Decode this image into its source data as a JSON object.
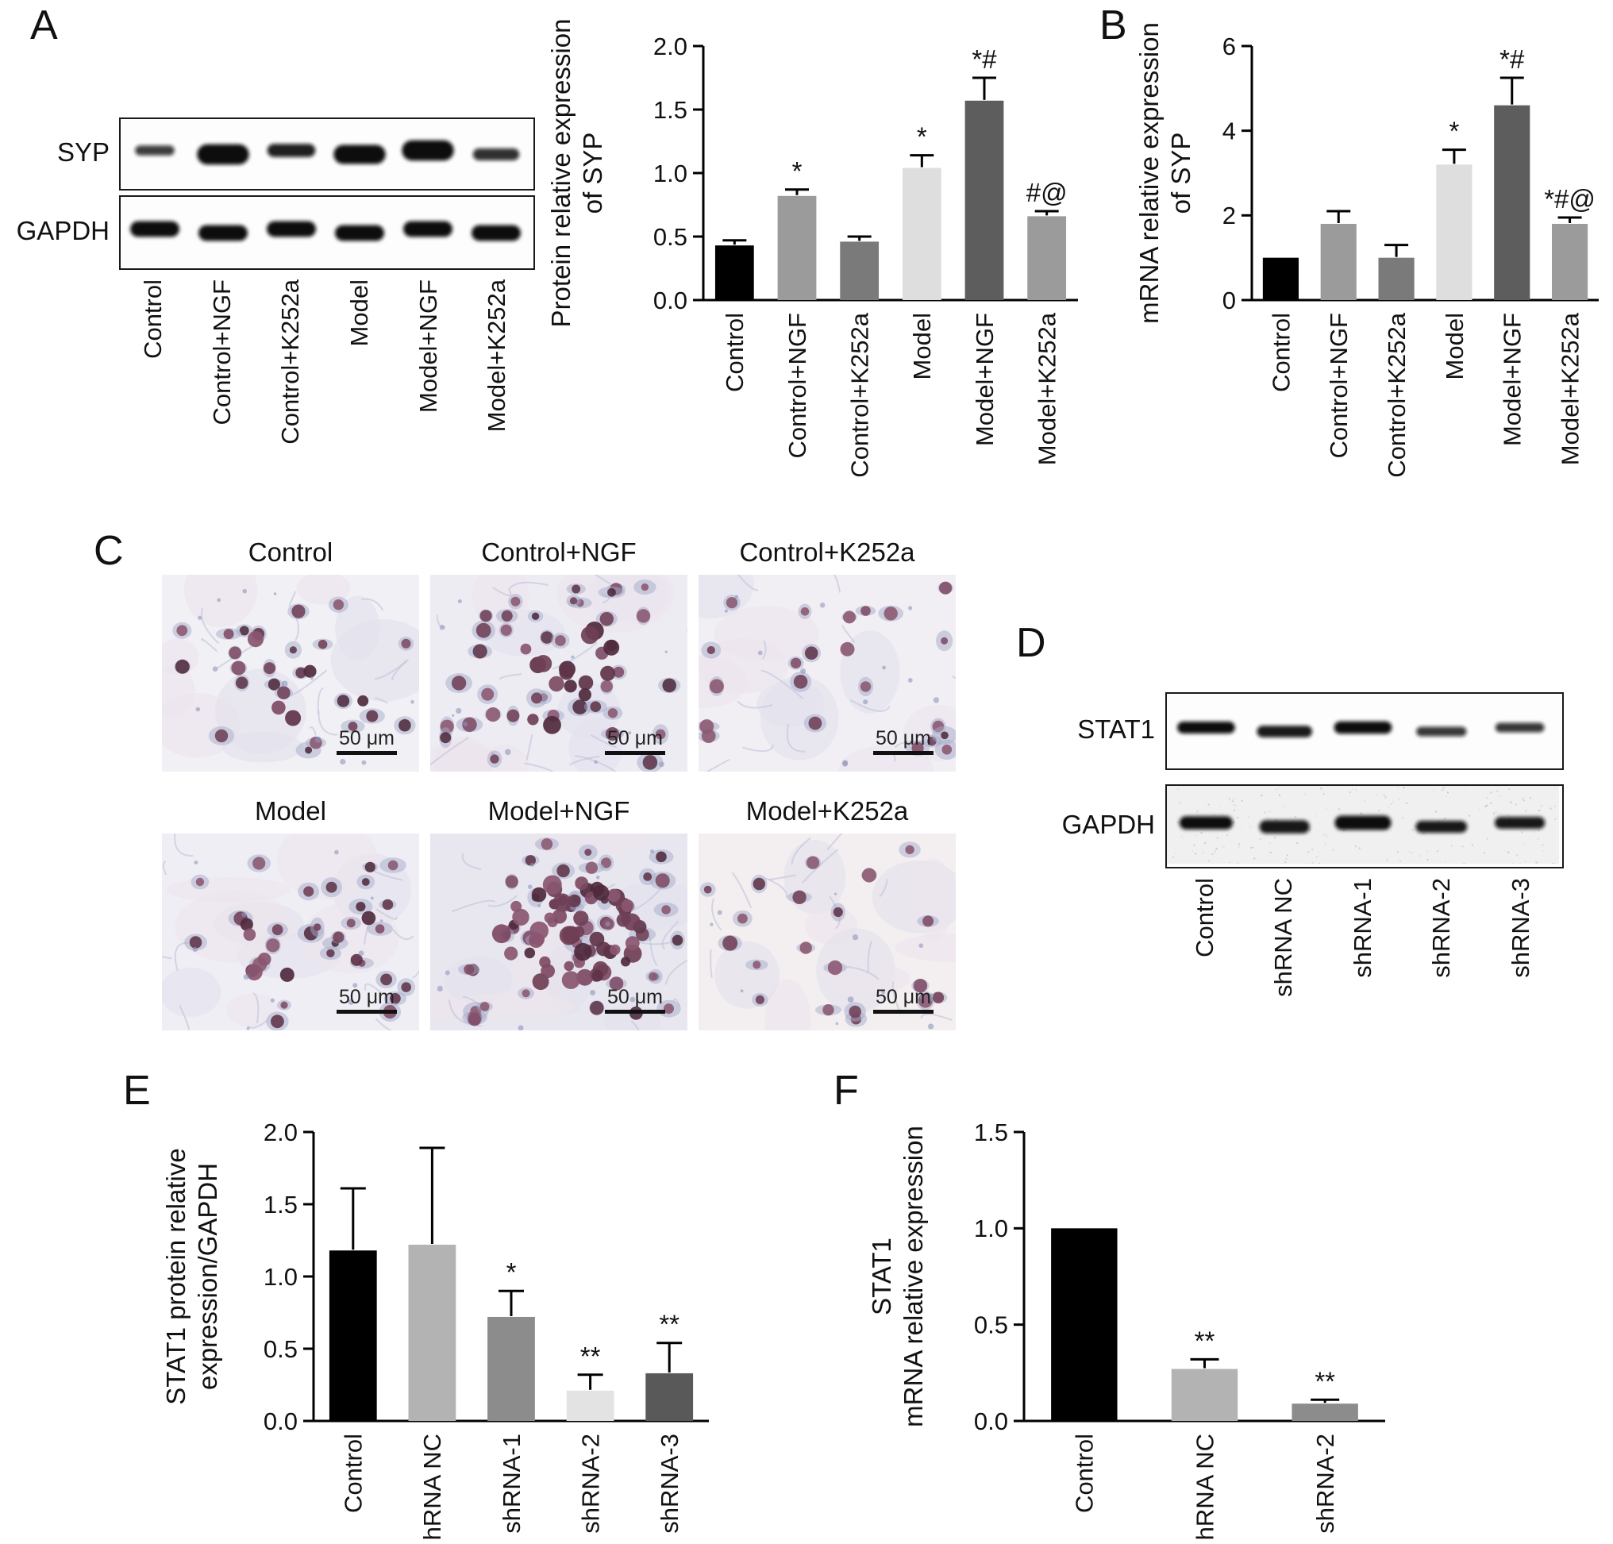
{
  "panels": {
    "A": {
      "letter": "A",
      "blot": {
        "row_labels": [
          "SYP",
          "GAPDH"
        ],
        "lanes": [
          "Control",
          "Control+NGF",
          "Control+K252a",
          "Model",
          "Model+NGF",
          "Model+K252a"
        ],
        "bands": [
          [
            {
              "w": 0.72,
              "t": 0.42,
              "o": 0.8
            },
            {
              "w": 0.95,
              "t": 0.85,
              "o": 1
            },
            {
              "w": 0.88,
              "t": 0.55,
              "o": 0.92
            },
            {
              "w": 0.95,
              "t": 0.8,
              "o": 1
            },
            {
              "w": 0.95,
              "t": 0.85,
              "o": 1
            },
            {
              "w": 0.85,
              "t": 0.5,
              "o": 0.85
            }
          ],
          [
            {
              "w": 0.9,
              "t": 0.66,
              "o": 1
            },
            {
              "w": 0.9,
              "t": 0.66,
              "o": 1
            },
            {
              "w": 0.9,
              "t": 0.66,
              "o": 1
            },
            {
              "w": 0.9,
              "t": 0.66,
              "o": 1
            },
            {
              "w": 0.9,
              "t": 0.66,
              "o": 1
            },
            {
              "w": 0.9,
              "t": 0.66,
              "o": 1
            }
          ]
        ]
      }
    },
    "B": {
      "letter": "B"
    },
    "C": {
      "letter": "C",
      "scale_label": "50 μm",
      "images": [
        {
          "title": "Control",
          "seed": 101,
          "cells": 24,
          "cluster_cells": 5,
          "tint": "#f1f0f5"
        },
        {
          "title": "Control+NGF",
          "seed": 202,
          "cells": 38,
          "cluster_cells": 16,
          "tint": "#edecf3"
        },
        {
          "title": "Control+K252a",
          "seed": 303,
          "cells": 22,
          "cluster_cells": 0,
          "tint": "#f1eff4"
        },
        {
          "title": "Model",
          "seed": 404,
          "cells": 28,
          "cluster_cells": 8,
          "tint": "#efeef4"
        },
        {
          "title": "Model+NGF",
          "seed": 505,
          "cells": 42,
          "cluster_cells": 55,
          "tint": "#e8e7f0"
        },
        {
          "title": "Model+K252a",
          "seed": 606,
          "cells": 20,
          "cluster_cells": 0,
          "tint": "#f3eef0"
        }
      ]
    },
    "D": {
      "letter": "D",
      "blot": {
        "row_labels": [
          "STAT1",
          "GAPDH"
        ],
        "lanes": [
          "Control",
          "shRNA NC",
          "shRNA-1",
          "shRNA-2",
          "shRNA-3"
        ],
        "bands": [
          [
            {
              "w": 0.92,
              "t": 0.5,
              "o": 1
            },
            {
              "w": 0.88,
              "t": 0.48,
              "o": 0.95
            },
            {
              "w": 0.92,
              "t": 0.52,
              "o": 1
            },
            {
              "w": 0.8,
              "t": 0.4,
              "o": 0.82
            },
            {
              "w": 0.78,
              "t": 0.4,
              "o": 0.82
            }
          ],
          [
            {
              "w": 0.85,
              "t": 0.55,
              "o": 1
            },
            {
              "w": 0.8,
              "t": 0.55,
              "o": 0.95
            },
            {
              "w": 0.9,
              "t": 0.6,
              "o": 1
            },
            {
              "w": 0.82,
              "t": 0.5,
              "o": 0.95
            },
            {
              "w": 0.8,
              "t": 0.5,
              "o": 0.95
            }
          ]
        ]
      }
    },
    "E": {
      "letter": "E"
    },
    "F": {
      "letter": "F"
    }
  },
  "chart_data": [
    {
      "id": "A",
      "panel": "A",
      "type": "bar",
      "title": "",
      "ylabel_lines": [
        "Protein relative expression",
        "of SYP"
      ],
      "categories": [
        "Control",
        "Control+NGF",
        "Control+K252a",
        "Model",
        "Model+NGF",
        "Model+K252a"
      ],
      "values": [
        0.43,
        0.82,
        0.46,
        1.04,
        1.57,
        0.66
      ],
      "errors": [
        0.04,
        0.05,
        0.04,
        0.1,
        0.18,
        0.04
      ],
      "annotations": [
        "",
        "*",
        "",
        "*",
        "*#",
        "#@"
      ],
      "bar_colors": [
        "#000000",
        "#9b9b9b",
        "#7a7a7a",
        "#dedede",
        "#5d5d5d",
        "#9b9b9b"
      ],
      "ylim": [
        0,
        2
      ],
      "yticks": [
        "0.0",
        "0.5",
        "1.0",
        "1.5",
        "2.0"
      ],
      "grid": false,
      "legend": null
    },
    {
      "id": "B",
      "panel": "B",
      "type": "bar",
      "title": "",
      "ylabel_lines": [
        "mRNA relative expression",
        "of SYP"
      ],
      "categories": [
        "Control",
        "Control+NGF",
        "Control+K252a",
        "Model",
        "Model+NGF",
        "Model+K252a"
      ],
      "values": [
        1.0,
        1.8,
        1.0,
        3.2,
        4.6,
        1.8
      ],
      "errors": [
        0,
        0.3,
        0.3,
        0.35,
        0.65,
        0.15
      ],
      "annotations": [
        "",
        "",
        "",
        "*",
        "*#",
        "*#@"
      ],
      "bar_colors": [
        "#000000",
        "#9b9b9b",
        "#7a7a7a",
        "#dedede",
        "#5d5d5d",
        "#9b9b9b"
      ],
      "ylim": [
        0,
        6
      ],
      "yticks": [
        "0",
        "2",
        "4",
        "6"
      ],
      "grid": false,
      "legend": null
    },
    {
      "id": "E",
      "panel": "E",
      "type": "bar",
      "title": "",
      "ylabel_lines": [
        "STAT1 protein relative",
        "expression/GAPDH"
      ],
      "categories": [
        "Control",
        "shRNA NC",
        "shRNA-1",
        "shRNA-2",
        "shRNA-3"
      ],
      "values": [
        1.18,
        1.22,
        0.72,
        0.21,
        0.33
      ],
      "errors": [
        0.43,
        0.67,
        0.18,
        0.11,
        0.21
      ],
      "annotations": [
        "",
        "",
        "*",
        "**",
        "**"
      ],
      "bar_colors": [
        "#000000",
        "#b3b3b3",
        "#8c8c8c",
        "#e3e3e3",
        "#595959"
      ],
      "ylim": [
        0,
        2
      ],
      "yticks": [
        "0.0",
        "0.5",
        "1.0",
        "1.5",
        "2.0"
      ],
      "grid": false,
      "legend": null
    },
    {
      "id": "F",
      "panel": "F",
      "type": "bar",
      "title": "",
      "ylabel_lines": [
        "STAT1",
        "mRNA relative expression"
      ],
      "categories": [
        "Control",
        "shRNA NC",
        "shRNA-2"
      ],
      "values": [
        1.0,
        0.27,
        0.09
      ],
      "errors": [
        0,
        0.05,
        0.02
      ],
      "annotations": [
        "",
        "**",
        "**"
      ],
      "bar_colors": [
        "#000000",
        "#b3b3b3",
        "#8c8c8c"
      ],
      "ylim": [
        0,
        1.5
      ],
      "yticks": [
        "0.0",
        "0.5",
        "1.0",
        "1.5"
      ],
      "grid": false,
      "legend": null
    }
  ]
}
